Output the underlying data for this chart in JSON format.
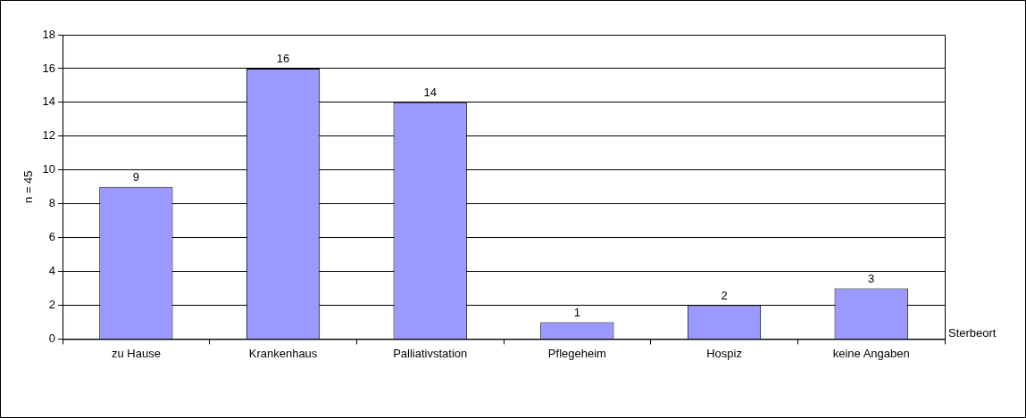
{
  "chart_data": {
    "type": "bar",
    "categories": [
      "zu Hause",
      "Krankenhaus",
      "Palliativstation",
      "Pflegeheim",
      "Hospiz",
      "keine Angaben"
    ],
    "values": [
      9,
      16,
      14,
      1,
      2,
      3
    ],
    "color": "#9999ff",
    "ylabel": "n = 45",
    "xlabel": "Sterbeort",
    "ylim": [
      0,
      18
    ],
    "yticks": [
      0,
      2,
      4,
      6,
      8,
      10,
      12,
      14,
      16,
      18
    ],
    "grid": "y",
    "data_labels": true
  }
}
